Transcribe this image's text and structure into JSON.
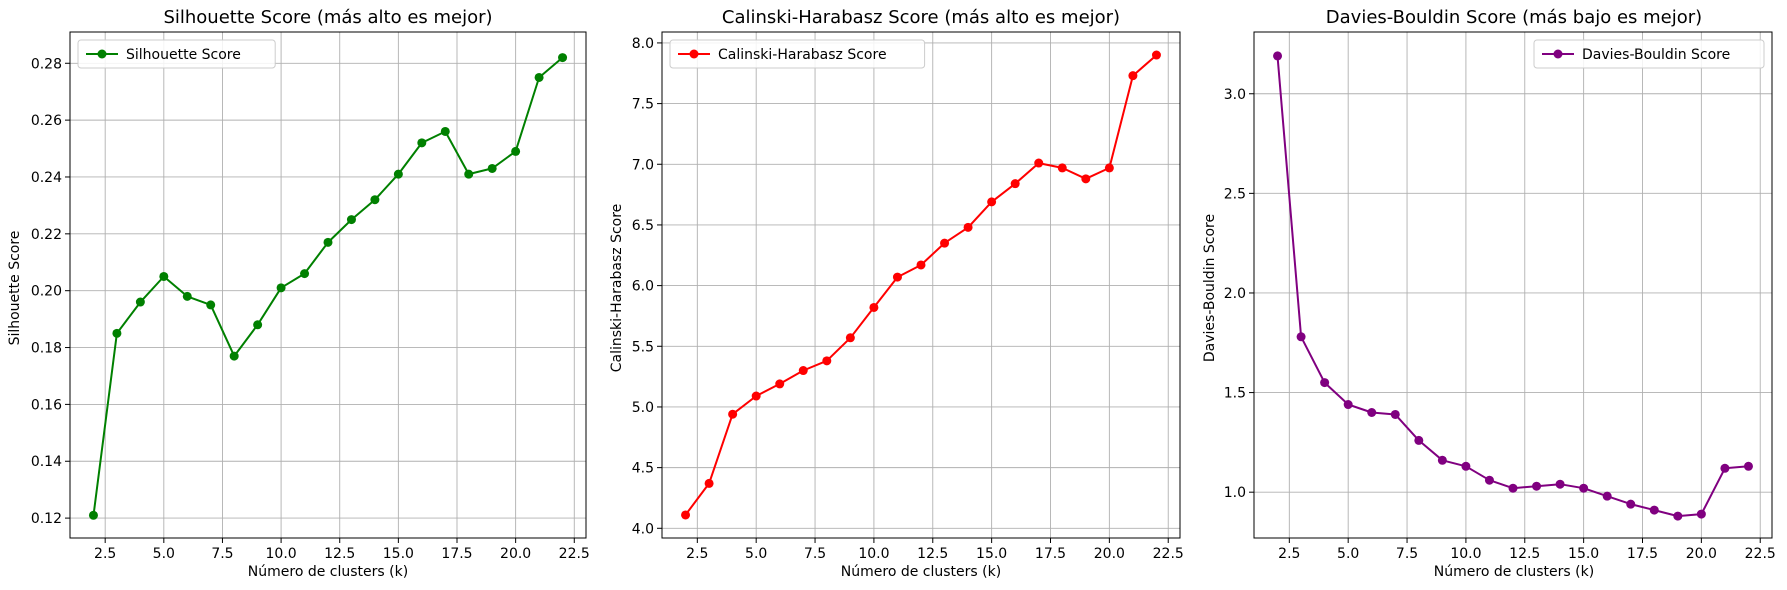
{
  "chart_data": [
    {
      "type": "line",
      "title": "Silhouette Score (más alto es mejor)",
      "xlabel": "Número de clusters (k)",
      "ylabel": "Silhouette Score",
      "xlim": [
        1.0,
        23.0
      ],
      "ylim": [
        0.113,
        0.291
      ],
      "xticks": [
        "2.5",
        "5.0",
        "7.5",
        "10.0",
        "12.5",
        "15.0",
        "17.5",
        "20.0",
        "22.5"
      ],
      "xtick_values": [
        2.5,
        5.0,
        7.5,
        10.0,
        12.5,
        15.0,
        17.5,
        20.0,
        22.5
      ],
      "yticks": [
        "0.12",
        "0.14",
        "0.16",
        "0.18",
        "0.20",
        "0.22",
        "0.24",
        "0.26",
        "0.28"
      ],
      "ytick_values": [
        0.12,
        0.14,
        0.16,
        0.18,
        0.2,
        0.22,
        0.24,
        0.26,
        0.28
      ],
      "grid": true,
      "legend_position": "top-left",
      "series": [
        {
          "name": "Silhouette Score",
          "color": "#008000",
          "x": [
            2,
            3,
            4,
            5,
            6,
            7,
            8,
            9,
            10,
            11,
            12,
            13,
            14,
            15,
            16,
            17,
            18,
            19,
            20,
            21,
            22
          ],
          "y": [
            0.121,
            0.185,
            0.196,
            0.205,
            0.198,
            0.195,
            0.177,
            0.188,
            0.201,
            0.206,
            0.217,
            0.225,
            0.232,
            0.241,
            0.252,
            0.256,
            0.241,
            0.243,
            0.249,
            0.275,
            0.282
          ]
        }
      ]
    },
    {
      "type": "line",
      "title": "Calinski-Harabasz Score (más alto es mejor)",
      "xlabel": "Número de clusters (k)",
      "ylabel": "Calinski-Harabasz Score",
      "xlim": [
        1.0,
        23.0
      ],
      "ylim": [
        3.92,
        8.09
      ],
      "xticks": [
        "2.5",
        "5.0",
        "7.5",
        "10.0",
        "12.5",
        "15.0",
        "17.5",
        "20.0",
        "22.5"
      ],
      "xtick_values": [
        2.5,
        5.0,
        7.5,
        10.0,
        12.5,
        15.0,
        17.5,
        20.0,
        22.5
      ],
      "yticks": [
        "4.0",
        "4.5",
        "5.0",
        "5.5",
        "6.0",
        "6.5",
        "7.0",
        "7.5",
        "8.0"
      ],
      "ytick_values": [
        4.0,
        4.5,
        5.0,
        5.5,
        6.0,
        6.5,
        7.0,
        7.5,
        8.0
      ],
      "grid": true,
      "legend_position": "top-left",
      "series": [
        {
          "name": "Calinski-Harabasz Score",
          "color": "#ff0000",
          "x": [
            2,
            3,
            4,
            5,
            6,
            7,
            8,
            9,
            10,
            11,
            12,
            13,
            14,
            15,
            16,
            17,
            18,
            19,
            20,
            21,
            22
          ],
          "y": [
            4.11,
            4.37,
            4.94,
            5.09,
            5.19,
            5.3,
            5.38,
            5.57,
            5.82,
            6.07,
            6.17,
            6.35,
            6.48,
            6.69,
            6.84,
            7.01,
            6.97,
            6.88,
            6.97,
            7.73,
            7.9
          ]
        }
      ]
    },
    {
      "type": "line",
      "title": "Davies-Bouldin Score (más bajo es mejor)",
      "xlabel": "Número de clusters (k)",
      "ylabel": "Davies-Bouldin Score",
      "xlim": [
        1.0,
        23.0
      ],
      "ylim": [
        0.77,
        3.31
      ],
      "xticks": [
        "2.5",
        "5.0",
        "7.5",
        "10.0",
        "12.5",
        "15.0",
        "17.5",
        "20.0",
        "22.5"
      ],
      "xtick_values": [
        2.5,
        5.0,
        7.5,
        10.0,
        12.5,
        15.0,
        17.5,
        20.0,
        22.5
      ],
      "yticks": [
        "1.0",
        "1.5",
        "2.0",
        "2.5",
        "3.0"
      ],
      "ytick_values": [
        1.0,
        1.5,
        2.0,
        2.5,
        3.0
      ],
      "grid": true,
      "legend_position": "top-right",
      "series": [
        {
          "name": "Davies-Bouldin Score",
          "color": "#800080",
          "x": [
            2,
            3,
            4,
            5,
            6,
            7,
            8,
            9,
            10,
            11,
            12,
            13,
            14,
            15,
            16,
            17,
            18,
            19,
            20,
            21,
            22
          ],
          "y": [
            3.19,
            1.78,
            1.55,
            1.44,
            1.4,
            1.39,
            1.26,
            1.16,
            1.13,
            1.06,
            1.02,
            1.03,
            1.04,
            1.02,
            0.98,
            0.94,
            0.91,
            0.88,
            0.89,
            1.12,
            1.13
          ]
        }
      ]
    }
  ]
}
